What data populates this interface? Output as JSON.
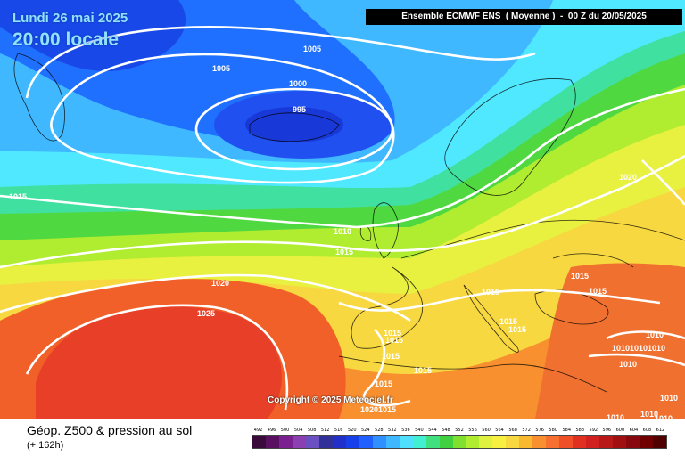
{
  "header": {
    "date": "Lundi 26 mai 2025",
    "time": "20:00 locale",
    "model": "Ensemble ECMWF ENS  ( Moyenne )  -  00 Z du 20/05/2025"
  },
  "copyright": "Copyright © 2025 Meteociel.fr",
  "footer": {
    "title": "Géop. Z500 & pression au sol",
    "subtitle": "(+ 162h)"
  },
  "scale": {
    "values": [
      "492",
      "496",
      "500",
      "504",
      "508",
      "512",
      "516",
      "520",
      "524",
      "528",
      "532",
      "536",
      "540",
      "544",
      "548",
      "552",
      "556",
      "560",
      "564",
      "568",
      "572",
      "576",
      "580",
      "584",
      "588",
      "592",
      "596",
      "600",
      "604",
      "608",
      "612"
    ],
    "colors": [
      "#3a0a3a",
      "#5a1060",
      "#7a2090",
      "#8a40b0",
      "#6a50c0",
      "#303098",
      "#2030c8",
      "#1840e8",
      "#2060ff",
      "#3090ff",
      "#40b8ff",
      "#50e0ff",
      "#40f0d0",
      "#40e080",
      "#40d040",
      "#80e030",
      "#b0ec30",
      "#e0f040",
      "#f8f040",
      "#f8d840",
      "#f8b830",
      "#f89030",
      "#f87030",
      "#f05028",
      "#e03020",
      "#d02020",
      "#b81818",
      "#a01010",
      "#880810",
      "#700000",
      "#500000"
    ]
  },
  "isobars": [
    {
      "label": "1005",
      "where": "greenland-north"
    },
    {
      "label": "1005",
      "where": "north-atlantic"
    },
    {
      "label": "1000",
      "where": "iceland-ring"
    },
    {
      "label": "995",
      "where": "low-center"
    },
    {
      "label": "1015",
      "where": "west-edge"
    },
    {
      "label": "1010",
      "where": "uk-west"
    },
    {
      "label": "1015",
      "where": "uk-southwest"
    },
    {
      "label": "1020",
      "where": "scandinavia-east"
    },
    {
      "label": "1020",
      "where": "atlantic-high-north"
    },
    {
      "label": "1025",
      "where": "atlantic-high-core"
    },
    {
      "label": "1015",
      "where": "alps"
    },
    {
      "label": "1015",
      "where": "balkans"
    },
    {
      "label": "1015",
      "where": "black-sea"
    },
    {
      "label": "1015",
      "where": "italy"
    },
    {
      "label": "1015",
      "where": "iberia-1"
    },
    {
      "label": "1015",
      "where": "iberia-2"
    },
    {
      "label": "1015",
      "where": "med-west"
    },
    {
      "label": "1015",
      "where": "algeria"
    },
    {
      "label": "1015",
      "where": "libya"
    },
    {
      "label": "1015",
      "where": "morocco"
    },
    {
      "label": "1020",
      "where": "sahara"
    },
    {
      "label": "1015",
      "where": "sahara-2"
    },
    {
      "label": "1010",
      "where": "turkey-1"
    },
    {
      "label": "1010",
      "where": "turkey-2"
    },
    {
      "label": "1010",
      "where": "turkey-3"
    },
    {
      "label": "1010",
      "where": "anatolia"
    },
    {
      "label": "1010",
      "where": "levant"
    },
    {
      "label": "1010",
      "where": "egypt"
    },
    {
      "label": "1010",
      "where": "red-sea"
    },
    {
      "label": "1010",
      "where": "east-edge"
    },
    {
      "label": "1010",
      "where": "middle-east"
    }
  ]
}
